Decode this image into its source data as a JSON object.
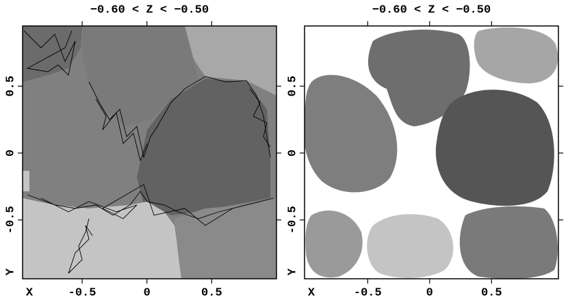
{
  "chart_data": [
    {
      "type": "region",
      "title": "−0.60 < Z < −0.50",
      "xlabel": "X",
      "ylabel": "Y",
      "xlim": [
        -0.96,
        1.0
      ],
      "ylim": [
        -0.94,
        0.95
      ],
      "xticks": [
        -0.5,
        0,
        0.5
      ],
      "yticks": [
        -0.5,
        0,
        0.5
      ]
    },
    {
      "type": "region",
      "title": "−0.60 < Z < −0.50",
      "xlabel": "X",
      "ylabel": "Y",
      "xlim": [
        -1.01,
        1.04
      ],
      "ylim": [
        -0.94,
        0.95
      ],
      "xticks": [
        -0.5,
        0,
        0.5
      ],
      "yticks": [
        -0.5,
        0,
        0.5
      ]
    }
  ]
}
